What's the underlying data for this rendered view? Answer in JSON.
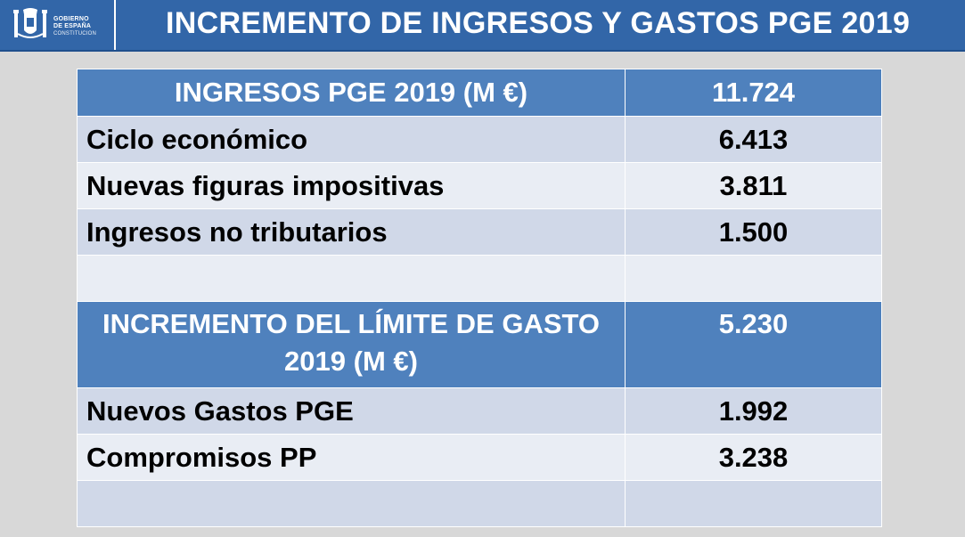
{
  "header": {
    "logo_line1": "GOBIERNO",
    "logo_line2": "DE ESPAÑA",
    "logo_line3": "CONSTITUCIÓN",
    "title": "INCREMENTO DE INGRESOS Y GASTOS PGE 2019"
  },
  "income": {
    "header_label": "INGRESOS PGE 2019 (M €)",
    "header_value": "11.724",
    "rows": [
      {
        "label": "Ciclo económico",
        "value": "6.413"
      },
      {
        "label": "Nuevas figuras impositivas",
        "value": "3.811"
      },
      {
        "label": "Ingresos no tributarios",
        "value": "1.500"
      }
    ]
  },
  "spending": {
    "header_label": "INCREMENTO DEL LÍMITE DE GASTO 2019 (M €)",
    "header_value": "5.230",
    "rows": [
      {
        "label": "Nuevos Gastos PGE",
        "value": "1.992"
      },
      {
        "label": "Compromisos PP",
        "value": "3.238"
      }
    ]
  },
  "colors": {
    "header_bg": "#3266a8",
    "table_header_bg": "#4f81bd",
    "row_dark": "#d0d8e8",
    "row_light": "#e9edf4"
  }
}
